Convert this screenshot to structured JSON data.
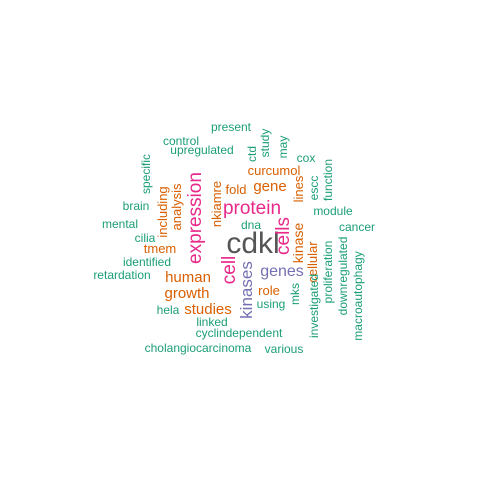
{
  "colors": {
    "green": "#1b9e77",
    "orange": "#d95f02",
    "purple": "#7570b3",
    "magenta": "#e7298a",
    "gray": "#555555"
  },
  "words": [
    {
      "text": "cdkl",
      "color": "gray"
    },
    {
      "text": "protein",
      "color": "magenta"
    },
    {
      "text": "expression",
      "color": "magenta"
    },
    {
      "text": "cell",
      "color": "magenta"
    },
    {
      "text": "cells",
      "color": "magenta"
    },
    {
      "text": "kinases",
      "color": "purple"
    },
    {
      "text": "genes",
      "color": "purple"
    },
    {
      "text": "human",
      "color": "orange"
    },
    {
      "text": "growth",
      "color": "orange"
    },
    {
      "text": "studies",
      "color": "orange"
    },
    {
      "text": "gene",
      "color": "orange"
    },
    {
      "text": "kinase",
      "color": "orange"
    },
    {
      "text": "role",
      "color": "orange"
    },
    {
      "text": "fold",
      "color": "orange"
    },
    {
      "text": "curcumol",
      "color": "orange"
    },
    {
      "text": "nkiamre",
      "color": "orange"
    },
    {
      "text": "including",
      "color": "orange"
    },
    {
      "text": "analysis",
      "color": "orange"
    },
    {
      "text": "tmem",
      "color": "orange"
    },
    {
      "text": "lines",
      "color": "orange"
    },
    {
      "text": "cellular",
      "color": "orange"
    },
    {
      "text": "present",
      "color": "green"
    },
    {
      "text": "control",
      "color": "green"
    },
    {
      "text": "upregulated",
      "color": "green"
    },
    {
      "text": "study",
      "color": "green"
    },
    {
      "text": "ctd",
      "color": "green"
    },
    {
      "text": "may",
      "color": "green"
    },
    {
      "text": "cox",
      "color": "green"
    },
    {
      "text": "specific",
      "color": "green"
    },
    {
      "text": "brain",
      "color": "green"
    },
    {
      "text": "mental",
      "color": "green"
    },
    {
      "text": "cilia",
      "color": "green"
    },
    {
      "text": "identified",
      "color": "green"
    },
    {
      "text": "retardation",
      "color": "green"
    },
    {
      "text": "dna",
      "color": "green"
    },
    {
      "text": "escc",
      "color": "green"
    },
    {
      "text": "function",
      "color": "green"
    },
    {
      "text": "module",
      "color": "green"
    },
    {
      "text": "cancer",
      "color": "green"
    },
    {
      "text": "proliferation",
      "color": "green"
    },
    {
      "text": "downregulated",
      "color": "green"
    },
    {
      "text": "macroautophagy",
      "color": "green"
    },
    {
      "text": "investigated",
      "color": "green"
    },
    {
      "text": "mks",
      "color": "green"
    },
    {
      "text": "using",
      "color": "green"
    },
    {
      "text": "hela",
      "color": "green"
    },
    {
      "text": "linked",
      "color": "green"
    },
    {
      "text": "cyclindependent",
      "color": "green"
    },
    {
      "text": "cholangiocarcinoma",
      "color": "green"
    },
    {
      "text": "various",
      "color": "green"
    }
  ]
}
